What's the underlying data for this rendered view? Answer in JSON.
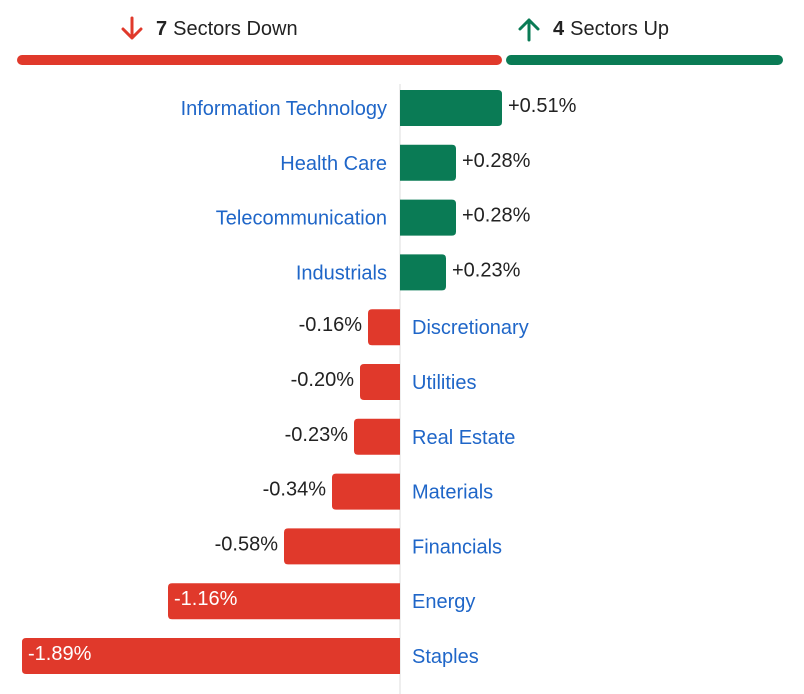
{
  "summary": {
    "down": {
      "count": "7",
      "label": "Sectors Down",
      "icon": "arrow-down-icon",
      "color": "#e0392b"
    },
    "up": {
      "count": "4",
      "label": "Sectors Up",
      "icon": "arrow-up-icon",
      "color": "#0a7b55"
    }
  },
  "chart_data": {
    "type": "bar",
    "orientation": "horizontal",
    "value_unit": "%",
    "categories": [
      "Information Technology",
      "Health Care",
      "Telecommunication",
      "Industrials",
      "Discretionary",
      "Utilities",
      "Real Estate",
      "Materials",
      "Financials",
      "Energy",
      "Staples"
    ],
    "values": [
      0.51,
      0.28,
      0.28,
      0.23,
      -0.16,
      -0.2,
      -0.23,
      -0.34,
      -0.58,
      -1.16,
      -1.89
    ],
    "value_labels": [
      "+0.51%",
      "+0.28%",
      "+0.28%",
      "+0.23%",
      "-0.16%",
      "-0.20%",
      "-0.23%",
      "-0.34%",
      "-0.58%",
      "-1.16%",
      "-1.89%"
    ],
    "colors": {
      "positive": "#0a7b55",
      "negative": "#e0392b",
      "category_text": "#1f66c8"
    },
    "xlabel": "",
    "ylabel": "",
    "grid": false,
    "legend": "none"
  }
}
